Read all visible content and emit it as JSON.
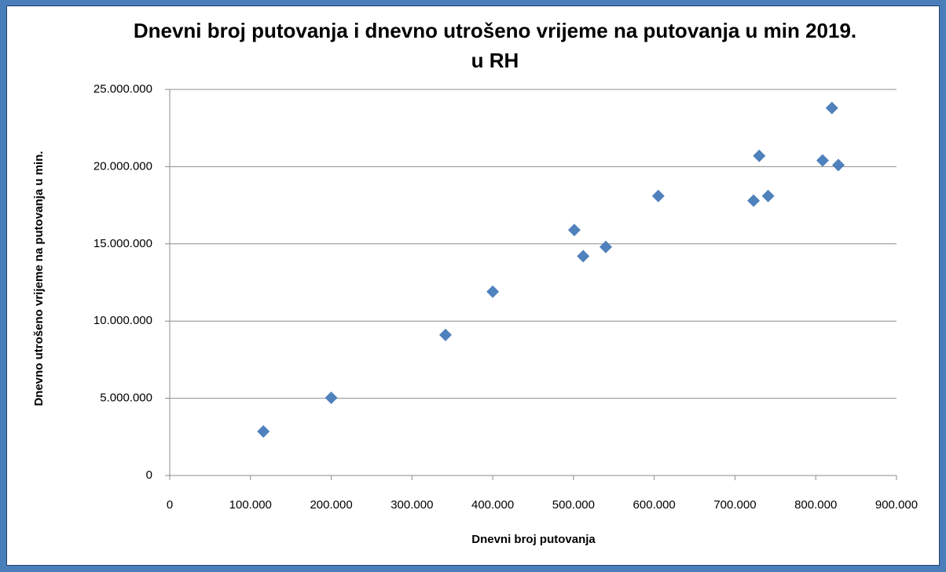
{
  "chart_data": {
    "type": "scatter",
    "title": "Dnevni broj putovanja i dnevno utrošeno vrijeme na putovanja u min 2019. u RH",
    "x_label": "Dnevni broj putovanja",
    "y_label": "Dnevno utrošeno vrijeme na putovanja u min.",
    "color": "#4f81bd",
    "grid": true,
    "x": [
      116000,
      200000,
      341500,
      400000,
      501000,
      512000,
      540000,
      605000,
      723000,
      730000,
      741000,
      808500,
      828000,
      820000
    ],
    "values": [
      2850000,
      5030000,
      9100000,
      11900000,
      15900000,
      14200000,
      14800000,
      18100000,
      17800000,
      20700000,
      18100000,
      20400000,
      20100000,
      23800000
    ],
    "xlim": [
      0,
      900000
    ],
    "xticks": [
      0,
      {
        "value": 100000,
        "label": "100.000"
      },
      {
        "value": 200000,
        "label": "200.000"
      },
      {
        "value": 300000,
        "label": "300.000"
      },
      {
        "value": 400000,
        "label": "400.000"
      },
      {
        "value": 500000,
        "label": "500.000"
      },
      {
        "value": 600000,
        "label": "600.000"
      },
      {
        "value": 700000,
        "label": "700.000"
      },
      {
        "value": 800000,
        "label": "800.000"
      },
      {
        "value": 900000,
        "label": "900.000"
      }
    ],
    "ylim": [
      0,
      25000000
    ],
    "yticks": [
      0,
      {
        "value": 5000000,
        "label": "5.000.000"
      },
      {
        "value": 10000000,
        "label": "10.000.000"
      },
      {
        "value": 15000000,
        "label": "15.000.000"
      },
      {
        "value": 20000000,
        "label": "20.000.000"
      },
      {
        "value": 25000000,
        "label": "25.000.000"
      }
    ]
  }
}
